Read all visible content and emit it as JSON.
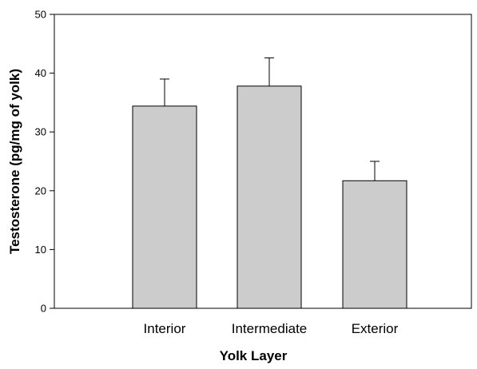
{
  "chart_data": {
    "type": "bar",
    "title": "",
    "xlabel": "Yolk Layer",
    "ylabel": "Testosterone (pg/mg of yolk)",
    "ylim": [
      0,
      50
    ],
    "yticks": [
      0,
      10,
      20,
      30,
      40,
      50
    ],
    "categories": [
      "Interior",
      "Intermediate",
      "Exterior"
    ],
    "values": [
      34.4,
      37.8,
      21.7
    ],
    "error_upper": [
      4.6,
      4.8,
      3.3
    ],
    "grid": false,
    "colors": {
      "bar_fill": "#cccccc",
      "bar_stroke": "#000000",
      "axis": "#000000"
    }
  }
}
